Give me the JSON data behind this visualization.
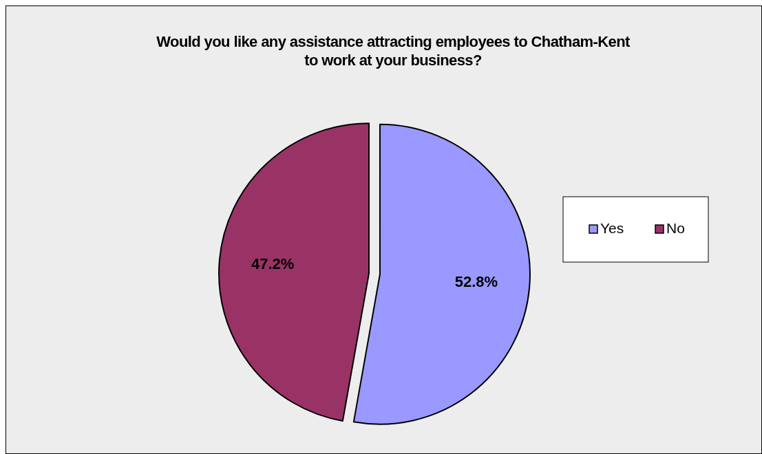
{
  "chart_data": {
    "type": "pie",
    "title": "Would you like any assistance attracting employees to Chatham-Kent\nto work at your business?",
    "categories": [
      "Yes",
      "No"
    ],
    "values": [
      52.8,
      47.2
    ],
    "value_labels": [
      "52.8%",
      "47.2%"
    ],
    "colors": [
      "#9999ff",
      "#993366"
    ],
    "legend": "right"
  }
}
